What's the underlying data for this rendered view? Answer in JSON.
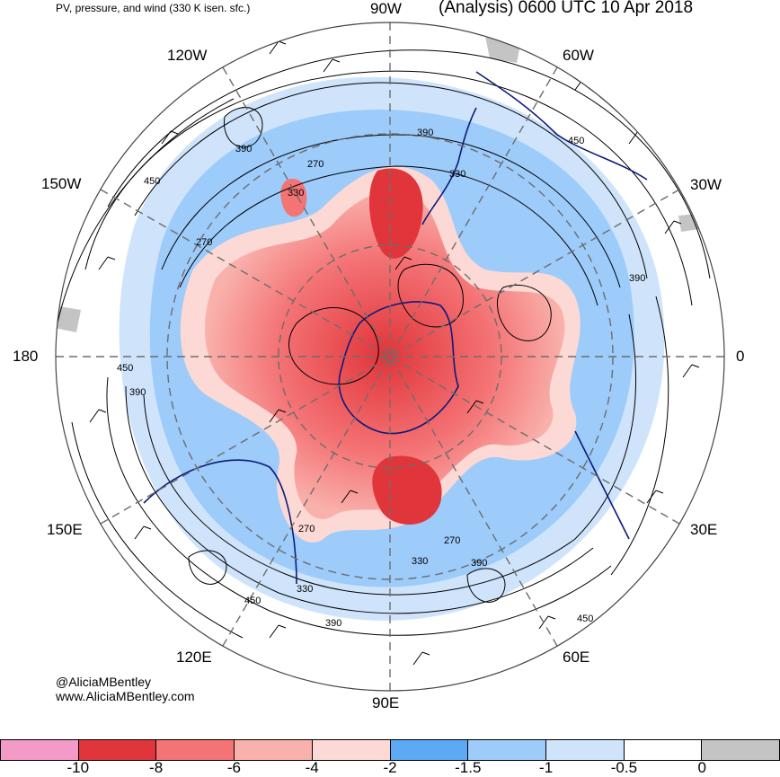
{
  "header": {
    "left_title": "PV, pressure, and wind (330 K isen. sfc.)",
    "right_title": "(Analysis) 0600 UTC 10 Apr 2018"
  },
  "longitude_labels": [
    "90W",
    "60W",
    "30W",
    "0",
    "30E",
    "60E",
    "90E",
    "120E",
    "150E",
    "180",
    "150W",
    "120W"
  ],
  "contour_labels": [
    "390",
    "270",
    "330",
    "450",
    "390",
    "330",
    "270",
    "330",
    "390",
    "450",
    "390",
    "330",
    "450",
    "270"
  ],
  "credits": {
    "handle": "@AliciaMBentley",
    "site": "www.AliciaMBentley.com"
  },
  "colorbar": {
    "colors": [
      "#f49ac8",
      "#e0353a",
      "#f47375",
      "#f9b1ac",
      "#fcd9d4",
      "#5ea9f4",
      "#9dcbfa",
      "#cfe4fb",
      "#ffffff",
      "#c4c4c4"
    ],
    "tick_labels": [
      "-10",
      "-8",
      "-6",
      "-4",
      "-2",
      "-1.5",
      "-1",
      "-0.5",
      "0"
    ]
  }
}
